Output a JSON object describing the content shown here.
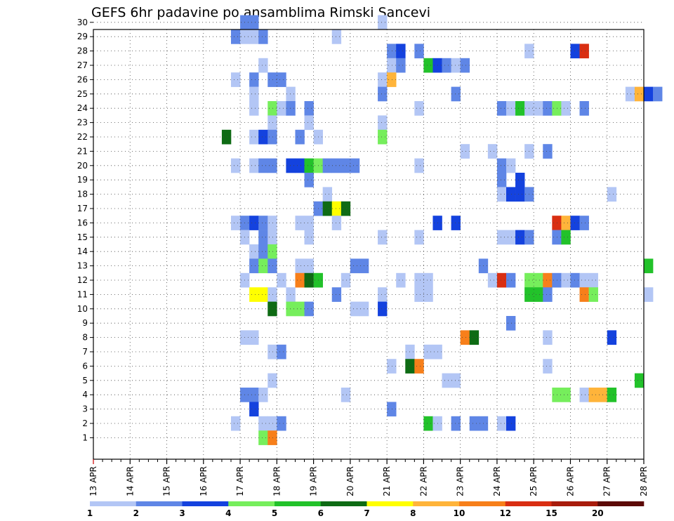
{
  "chart_data": {
    "type": "heatmap",
    "title": "GEFS 6hr padavine po ansamblima Rimski Sancevi",
    "x_tick_labels": [
      "13 APR",
      "14 APR",
      "15 APR",
      "16 APR",
      "17 APR",
      "18 APR",
      "19 APR",
      "20 APR",
      "21 APR",
      "22 APR",
      "23 APR",
      "24 APR",
      "25 APR",
      "26 APR",
      "27 APR",
      "28 APR"
    ],
    "y_range": [
      1,
      30
    ],
    "x_steps_per_day": 4,
    "grid": true,
    "legend": {
      "placement": "bottom",
      "labels": [
        "1",
        "2",
        "3",
        "4",
        "5",
        "6",
        "7",
        "8",
        "10",
        "12",
        "15",
        "20"
      ],
      "colors": [
        "#b3c6f5",
        "#5f86e6",
        "#1442de",
        "#76ee5c",
        "#22c22a",
        "#0e6b14",
        "#ffff00",
        "#ffb43a",
        "#f77f1a",
        "#d92e12",
        "#a81c0c",
        "#5c0a06"
      ]
    },
    "cells": [
      [
        16,
        30,
        1
      ],
      [
        17,
        30,
        1
      ],
      [
        31,
        30,
        0
      ],
      [
        15,
        29,
        1
      ],
      [
        16,
        29,
        0
      ],
      [
        17,
        29,
        0
      ],
      [
        18,
        29,
        1
      ],
      [
        26,
        29,
        0
      ],
      [
        32,
        28,
        1
      ],
      [
        33,
        28,
        2
      ],
      [
        35,
        28,
        1
      ],
      [
        47,
        28,
        0
      ],
      [
        52,
        28,
        2
      ],
      [
        53,
        28,
        9
      ],
      [
        18,
        27,
        0
      ],
      [
        32,
        27,
        0
      ],
      [
        33,
        27,
        1
      ],
      [
        36,
        27,
        4
      ],
      [
        37,
        27,
        2
      ],
      [
        38,
        27,
        1
      ],
      [
        39,
        27,
        0
      ],
      [
        40,
        27,
        1
      ],
      [
        15,
        26,
        0
      ],
      [
        17,
        26,
        1
      ],
      [
        19,
        26,
        1
      ],
      [
        20,
        26,
        1
      ],
      [
        31,
        26,
        0
      ],
      [
        32,
        26,
        7
      ],
      [
        17,
        25,
        0
      ],
      [
        21,
        25,
        0
      ],
      [
        31,
        25,
        1
      ],
      [
        39,
        25,
        1
      ],
      [
        58,
        25,
        0
      ],
      [
        59,
        25,
        7
      ],
      [
        60,
        25,
        2
      ],
      [
        61,
        25,
        1
      ],
      [
        17,
        24,
        0
      ],
      [
        19,
        24,
        3
      ],
      [
        20,
        24,
        0
      ],
      [
        21,
        24,
        1
      ],
      [
        23,
        24,
        1
      ],
      [
        35,
        24,
        0
      ],
      [
        44,
        24,
        1
      ],
      [
        45,
        24,
        0
      ],
      [
        46,
        24,
        4
      ],
      [
        47,
        24,
        0
      ],
      [
        48,
        24,
        0
      ],
      [
        49,
        24,
        1
      ],
      [
        50,
        24,
        3
      ],
      [
        51,
        24,
        0
      ],
      [
        53,
        24,
        1
      ],
      [
        19,
        23,
        0
      ],
      [
        23,
        23,
        0
      ],
      [
        31,
        23,
        0
      ],
      [
        14,
        22,
        5
      ],
      [
        17,
        22,
        0
      ],
      [
        18,
        22,
        2
      ],
      [
        19,
        22,
        1
      ],
      [
        22,
        22,
        1
      ],
      [
        24,
        22,
        0
      ],
      [
        31,
        22,
        3
      ],
      [
        40,
        21,
        0
      ],
      [
        43,
        21,
        0
      ],
      [
        47,
        21,
        0
      ],
      [
        49,
        21,
        1
      ],
      [
        15,
        20,
        0
      ],
      [
        17,
        20,
        0
      ],
      [
        18,
        20,
        1
      ],
      [
        19,
        20,
        1
      ],
      [
        21,
        20,
        2
      ],
      [
        22,
        20,
        2
      ],
      [
        23,
        20,
        4
      ],
      [
        24,
        20,
        3
      ],
      [
        25,
        20,
        1
      ],
      [
        26,
        20,
        1
      ],
      [
        27,
        20,
        1
      ],
      [
        28,
        20,
        1
      ],
      [
        35,
        20,
        0
      ],
      [
        44,
        20,
        1
      ],
      [
        45,
        20,
        0
      ],
      [
        44,
        19,
        1
      ],
      [
        23,
        19,
        1
      ],
      [
        46,
        19,
        2
      ],
      [
        25,
        18,
        0
      ],
      [
        44,
        18,
        0
      ],
      [
        45,
        18,
        2
      ],
      [
        46,
        18,
        2
      ],
      [
        47,
        18,
        1
      ],
      [
        56,
        18,
        0
      ],
      [
        24,
        17,
        1
      ],
      [
        25,
        17,
        5
      ],
      [
        26,
        17,
        6
      ],
      [
        27,
        17,
        5
      ],
      [
        15,
        16,
        0
      ],
      [
        16,
        16,
        1
      ],
      [
        17,
        16,
        2
      ],
      [
        18,
        16,
        1
      ],
      [
        19,
        16,
        0
      ],
      [
        22,
        16,
        0
      ],
      [
        23,
        16,
        0
      ],
      [
        26,
        16,
        0
      ],
      [
        37,
        16,
        2
      ],
      [
        39,
        16,
        2
      ],
      [
        50,
        16,
        9
      ],
      [
        51,
        16,
        7
      ],
      [
        52,
        16,
        2
      ],
      [
        53,
        16,
        1
      ],
      [
        16,
        15,
        0
      ],
      [
        18,
        15,
        1
      ],
      [
        19,
        15,
        0
      ],
      [
        23,
        15,
        0
      ],
      [
        31,
        15,
        0
      ],
      [
        35,
        15,
        0
      ],
      [
        44,
        15,
        0
      ],
      [
        45,
        15,
        0
      ],
      [
        46,
        15,
        2
      ],
      [
        47,
        15,
        1
      ],
      [
        50,
        15,
        1
      ],
      [
        51,
        15,
        4
      ],
      [
        17,
        14,
        0
      ],
      [
        18,
        14,
        1
      ],
      [
        19,
        14,
        3
      ],
      [
        17,
        13,
        1
      ],
      [
        18,
        13,
        3
      ],
      [
        19,
        13,
        1
      ],
      [
        22,
        13,
        0
      ],
      [
        23,
        13,
        0
      ],
      [
        28,
        13,
        1
      ],
      [
        29,
        13,
        1
      ],
      [
        42,
        13,
        1
      ],
      [
        60,
        13,
        4
      ],
      [
        16,
        12,
        0
      ],
      [
        20,
        12,
        0
      ],
      [
        22,
        12,
        8
      ],
      [
        23,
        12,
        5
      ],
      [
        24,
        12,
        4
      ],
      [
        27,
        12,
        0
      ],
      [
        33,
        12,
        0
      ],
      [
        35,
        12,
        0
      ],
      [
        36,
        12,
        0
      ],
      [
        43,
        12,
        0
      ],
      [
        44,
        12,
        9
      ],
      [
        45,
        12,
        1
      ],
      [
        47,
        12,
        3
      ],
      [
        48,
        12,
        3
      ],
      [
        49,
        12,
        8
      ],
      [
        50,
        12,
        1
      ],
      [
        51,
        12,
        0
      ],
      [
        52,
        12,
        1
      ],
      [
        53,
        12,
        0
      ],
      [
        54,
        12,
        0
      ],
      [
        17,
        11,
        6
      ],
      [
        18,
        11,
        6
      ],
      [
        19,
        11,
        0
      ],
      [
        21,
        11,
        0
      ],
      [
        26,
        11,
        1
      ],
      [
        31,
        11,
        0
      ],
      [
        35,
        11,
        0
      ],
      [
        36,
        11,
        0
      ],
      [
        47,
        11,
        4
      ],
      [
        48,
        11,
        4
      ],
      [
        49,
        11,
        1
      ],
      [
        53,
        11,
        8
      ],
      [
        54,
        11,
        3
      ],
      [
        60,
        11,
        0
      ],
      [
        19,
        10,
        5
      ],
      [
        21,
        10,
        3
      ],
      [
        22,
        10,
        3
      ],
      [
        23,
        10,
        1
      ],
      [
        28,
        10,
        0
      ],
      [
        29,
        10,
        0
      ],
      [
        31,
        10,
        2
      ],
      [
        45,
        9,
        1
      ],
      [
        16,
        8,
        0
      ],
      [
        17,
        8,
        0
      ],
      [
        40,
        8,
        8
      ],
      [
        41,
        8,
        5
      ],
      [
        49,
        8,
        0
      ],
      [
        56,
        8,
        2
      ],
      [
        19,
        7,
        0
      ],
      [
        20,
        7,
        1
      ],
      [
        34,
        7,
        0
      ],
      [
        36,
        7,
        0
      ],
      [
        37,
        7,
        0
      ],
      [
        32,
        6,
        0
      ],
      [
        34,
        6,
        5
      ],
      [
        35,
        6,
        8
      ],
      [
        49,
        6,
        0
      ],
      [
        19,
        5,
        0
      ],
      [
        38,
        5,
        0
      ],
      [
        39,
        5,
        0
      ],
      [
        59,
        5,
        4
      ],
      [
        16,
        4,
        1
      ],
      [
        17,
        4,
        1
      ],
      [
        18,
        4,
        0
      ],
      [
        27,
        4,
        0
      ],
      [
        50,
        4,
        3
      ],
      [
        51,
        4,
        3
      ],
      [
        53,
        4,
        0
      ],
      [
        54,
        4,
        7
      ],
      [
        55,
        4,
        7
      ],
      [
        56,
        4,
        4
      ],
      [
        17,
        3,
        2
      ],
      [
        32,
        3,
        1
      ],
      [
        15,
        2,
        0
      ],
      [
        18,
        2,
        0
      ],
      [
        19,
        2,
        0
      ],
      [
        20,
        2,
        1
      ],
      [
        36,
        2,
        4
      ],
      [
        37,
        2,
        0
      ],
      [
        39,
        2,
        1
      ],
      [
        41,
        2,
        1
      ],
      [
        42,
        2,
        1
      ],
      [
        44,
        2,
        0
      ],
      [
        45,
        2,
        2
      ],
      [
        18,
        1,
        3
      ],
      [
        19,
        1,
        8
      ]
    ]
  }
}
